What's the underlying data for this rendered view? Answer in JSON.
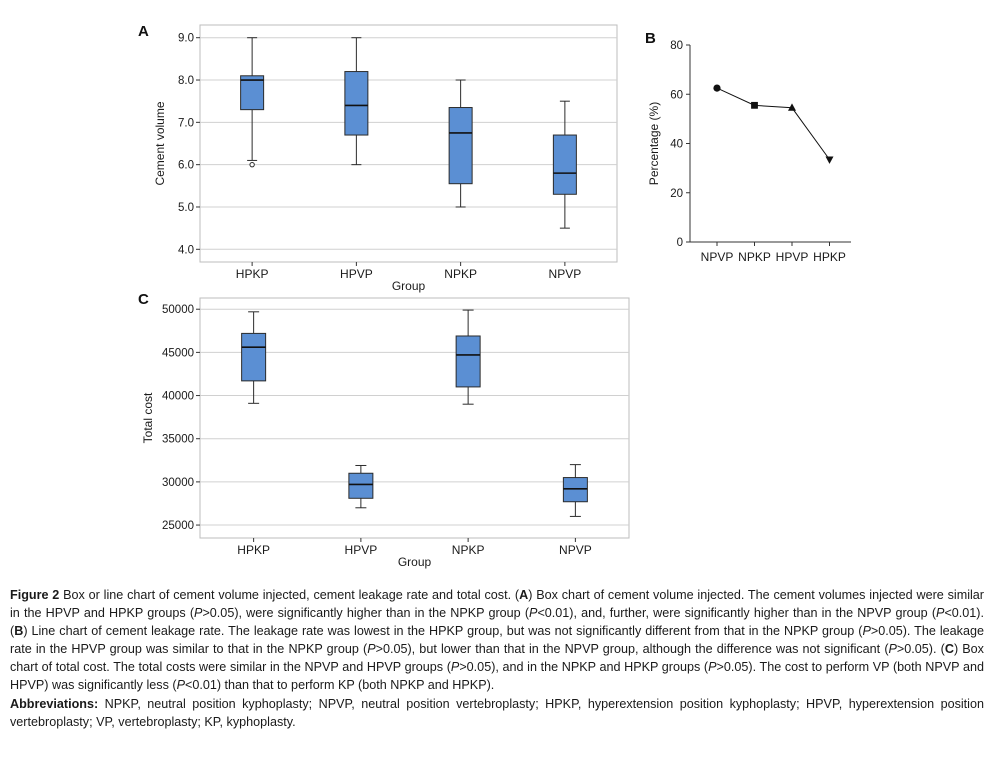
{
  "colors": {
    "box_fill": "#5b8fd3",
    "box_stroke": "#2b2b2b",
    "grid": "#d0d0d0",
    "axis": "#333333",
    "text": "#1a1a1a"
  },
  "chart_data": [
    {
      "panel": "A",
      "type": "box",
      "title": "",
      "xlabel": "Group",
      "ylabel": "Cement volume",
      "ylim": [
        3.7,
        9.3
      ],
      "yticks": [
        4.0,
        5.0,
        6.0,
        7.0,
        8.0,
        9.0
      ],
      "ytick_labels": [
        "4.0",
        "5.0",
        "6.0",
        "7.0",
        "8.0",
        "9.0"
      ],
      "grid": true,
      "categories": [
        "HPKP",
        "HPVP",
        "NPKP",
        "NPVP"
      ],
      "boxes": [
        {
          "min": 6.1,
          "q1": 7.3,
          "median": 8.0,
          "q3": 8.1,
          "max": 9.0,
          "outliers": [
            6.0
          ]
        },
        {
          "min": 6.0,
          "q1": 6.7,
          "median": 7.4,
          "q3": 8.2,
          "max": 9.0,
          "outliers": []
        },
        {
          "min": 5.0,
          "q1": 5.55,
          "median": 6.75,
          "q3": 7.35,
          "max": 8.0,
          "outliers": []
        },
        {
          "min": 4.5,
          "q1": 5.3,
          "median": 5.8,
          "q3": 6.7,
          "max": 7.5,
          "outliers": []
        }
      ]
    },
    {
      "panel": "B",
      "type": "line",
      "title": "",
      "xlabel": "",
      "ylabel": "Percentage (%)",
      "ylim": [
        0,
        80
      ],
      "yticks": [
        0,
        20,
        40,
        60,
        80
      ],
      "ytick_labels": [
        "0",
        "20",
        "40",
        "60",
        "80"
      ],
      "grid": false,
      "categories": [
        "NPVP",
        "NPKP",
        "HPVP",
        "HPKP"
      ],
      "values": [
        62.5,
        55.5,
        54.5,
        33.5
      ],
      "markers": [
        "circle",
        "square",
        "triangle-up",
        "triangle-down"
      ]
    },
    {
      "panel": "C",
      "type": "box",
      "title": "",
      "xlabel": "Group",
      "ylabel": "Total cost",
      "ylim": [
        23500,
        51300
      ],
      "yticks": [
        25000,
        30000,
        35000,
        40000,
        45000,
        50000
      ],
      "ytick_labels": [
        "25000",
        "30000",
        "35000",
        "40000",
        "45000",
        "50000"
      ],
      "grid": true,
      "categories": [
        "HPKP",
        "HPVP",
        "NPKP",
        "NPVP"
      ],
      "boxes": [
        {
          "min": 39100,
          "q1": 41700,
          "median": 45600,
          "q3": 47200,
          "max": 49700,
          "outliers": []
        },
        {
          "min": 27000,
          "q1": 28100,
          "median": 29700,
          "q3": 31000,
          "max": 31900,
          "outliers": []
        },
        {
          "min": 39000,
          "q1": 41000,
          "median": 44700,
          "q3": 46900,
          "max": 49900,
          "outliers": []
        },
        {
          "min": 26000,
          "q1": 27700,
          "median": 29200,
          "q3": 30500,
          "max": 32000,
          "outliers": []
        }
      ]
    }
  ],
  "caption": {
    "figure_label": "Figure 2",
    "figure_title": " Box or line chart of cement volume injected, cement leakage rate and total cost. (",
    "a_label": "A",
    "a_text_1": ") Box chart of cement volume injected. The cement volumes injected were similar in the HPVP and HPKP groups (",
    "p1": "P",
    "a_text_2": ">0.05), were significantly higher than in the NPKP group (",
    "p2": "P",
    "a_text_3": "<0.01), and, further, were significantly higher than in the NPVP group (",
    "p3": "P",
    "a_text_4": "<0.01). (",
    "b_label": "B",
    "b_text_1": ") Line chart of cement leakage rate. The leakage rate was lowest in the HPKP group, but was not significantly different from that in the NPKP group (",
    "p4": "P",
    "b_text_2": ">0.05). The leakage rate in the HPVP group was similar to that in the NPKP group (",
    "p5": "P",
    "b_text_3": ">0.05), but lower than that in the NPVP group, although the difference was not significant (",
    "p6": "P",
    "b_text_4": ">0.05). (",
    "c_label": "C",
    "c_text_1": ") Box chart of total cost. The total costs were similar in the NPVP and HPVP groups (",
    "p7": "P",
    "c_text_2": ">0.05), and in the NPKP and HPKP groups (",
    "p8": "P",
    "c_text_3": ">0.05). The cost to perform VP (both NPVP and HPVP) was significantly less (",
    "p9": "P",
    "c_text_4": "<0.01) than that to perform KP (both NPKP and HPKP).",
    "abbr_label": "Abbreviations:",
    "abbr_text": " NPKP, neutral position kyphoplasty; NPVP, neutral position vertebroplasty; HPKP, hyperextension position kyphoplasty; HPVP, hyperextension position vertebroplasty; VP, vertebroplasty; KP, kyphoplasty."
  }
}
